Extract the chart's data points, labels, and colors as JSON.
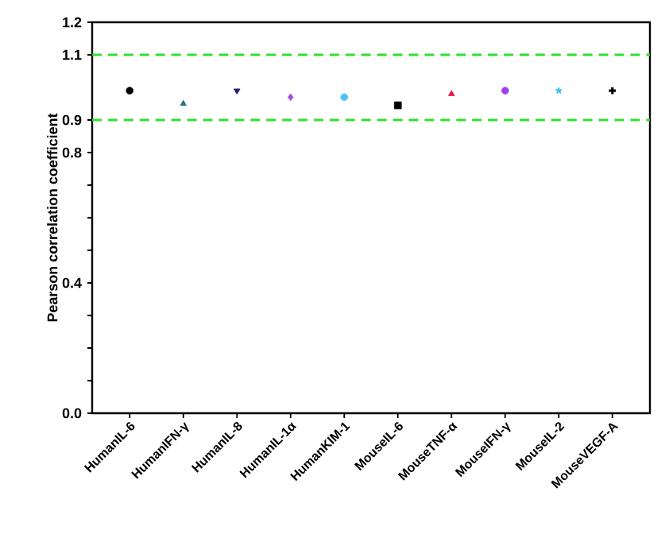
{
  "chart_data": {
    "type": "scatter",
    "ylabel": "Pearson correlation coefficient",
    "categories": [
      "HumanIL-6",
      "HumanIFN-γ",
      "HumanIL-8",
      "HumanIL-1α",
      "HumanKIM-1",
      "MouseIL-6",
      "MouseTNF-α",
      "MouseIFN-γ",
      "MouseIL-2",
      "MouseVEGF-A"
    ],
    "series": [
      {
        "color": "#000000",
        "marker": "circle",
        "values": [
          0.99,
          null,
          null,
          null,
          null,
          null,
          null,
          null,
          null,
          null
        ]
      },
      {
        "color": "#1f7a7a",
        "marker": "triangle",
        "values": [
          null,
          0.95,
          null,
          null,
          null,
          null,
          null,
          null,
          null,
          null
        ]
      },
      {
        "color": "#2a1a6e",
        "marker": "triangle-down",
        "values": [
          null,
          null,
          0.99,
          null,
          null,
          null,
          null,
          null,
          null,
          null
        ]
      },
      {
        "color": "#a050e0",
        "marker": "diamond",
        "values": [
          null,
          null,
          null,
          0.97,
          null,
          null,
          null,
          null,
          null,
          null
        ]
      },
      {
        "color": "#4fc3f7",
        "marker": "circle",
        "values": [
          null,
          null,
          null,
          null,
          0.97,
          null,
          null,
          null,
          null,
          null
        ]
      },
      {
        "color": "#000000",
        "marker": "square",
        "values": [
          null,
          null,
          null,
          null,
          null,
          0.945,
          null,
          null,
          null,
          null
        ]
      },
      {
        "color": "#e8174a",
        "marker": "triangle",
        "values": [
          null,
          null,
          null,
          null,
          null,
          null,
          0.98,
          null,
          null,
          null
        ]
      },
      {
        "color": "#a040f0",
        "marker": "circle",
        "values": [
          null,
          null,
          null,
          null,
          null,
          null,
          null,
          0.99,
          null,
          null
        ]
      },
      {
        "color": "#40c0f0",
        "marker": "star",
        "values": [
          null,
          null,
          null,
          null,
          null,
          null,
          null,
          null,
          0.99,
          null
        ]
      },
      {
        "color": "#000000",
        "marker": "cross",
        "values": [
          null,
          null,
          null,
          null,
          null,
          null,
          null,
          null,
          null,
          0.99
        ]
      }
    ],
    "ylim": [
      0.0,
      1.2
    ],
    "yticks": [
      {
        "value": 0.0,
        "label": "0.0"
      },
      {
        "value": 0.1,
        "label": null
      },
      {
        "value": 0.2,
        "label": null
      },
      {
        "value": 0.3,
        "label": null
      },
      {
        "value": 0.4,
        "label": "0.4"
      },
      {
        "value": 0.5,
        "label": null
      },
      {
        "value": 0.6,
        "label": null
      },
      {
        "value": 0.7,
        "label": null
      },
      {
        "value": 0.8,
        "label": "0.8"
      },
      {
        "value": 0.9,
        "label": "0.9"
      },
      {
        "value": 1.1,
        "label": "1.1"
      },
      {
        "value": 1.2,
        "label": "1.2"
      }
    ],
    "ref_lines": [
      {
        "axis": "y",
        "value": 1.1,
        "color": "#33dd33",
        "line_style": "dashed"
      },
      {
        "axis": "y",
        "value": 0.9,
        "color": "#33dd33",
        "line_style": "dashed"
      }
    ],
    "grid": false
  }
}
